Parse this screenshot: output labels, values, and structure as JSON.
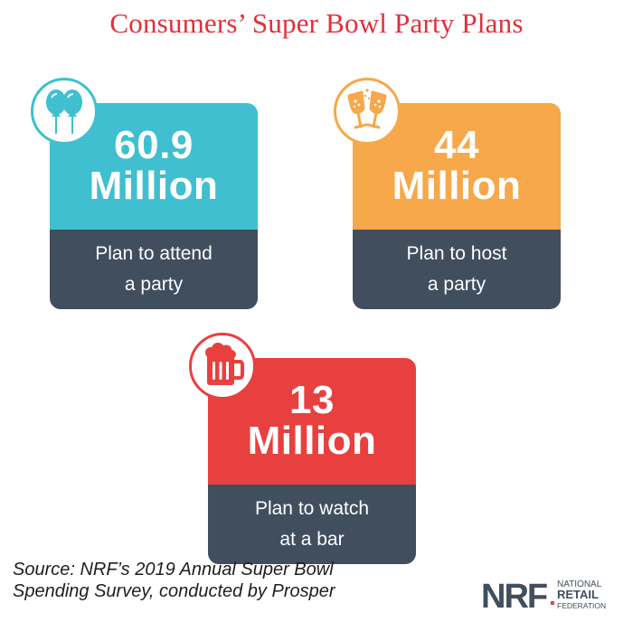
{
  "title": "Consumers’ Super Bowl Party Plans",
  "chart_data": {
    "type": "table",
    "title": "Consumers’ Super Bowl Party Plans",
    "unit": "Million",
    "items": [
      {
        "value": 60.9,
        "value_label": "60.9",
        "unit": "Million",
        "description_line1": "Plan to attend",
        "description_line2": "a party",
        "color": "#3fbfcf",
        "icon": "balloons-icon"
      },
      {
        "value": 44,
        "value_label": "44",
        "unit": "Million",
        "description_line1": "Plan to host",
        "description_line2": "a party",
        "color": "#f6a84a",
        "icon": "champagne-glasses-icon"
      },
      {
        "value": 13,
        "value_label": "13",
        "unit": "Million",
        "description_line1": "Plan to watch",
        "description_line2": "at a bar",
        "color": "#e8403f",
        "icon": "beer-mug-icon"
      }
    ]
  },
  "source": {
    "line1": "Source: NRF’s 2019 Annual Super Bowl",
    "line2": "Spending Survey, conducted by Prosper"
  },
  "logo": {
    "mark": "NRF",
    "line1": "NATIONAL",
    "line2": "RETAIL",
    "line3": "FEDERATION",
    "color": "#414e5e",
    "accent": "#e8403f"
  }
}
